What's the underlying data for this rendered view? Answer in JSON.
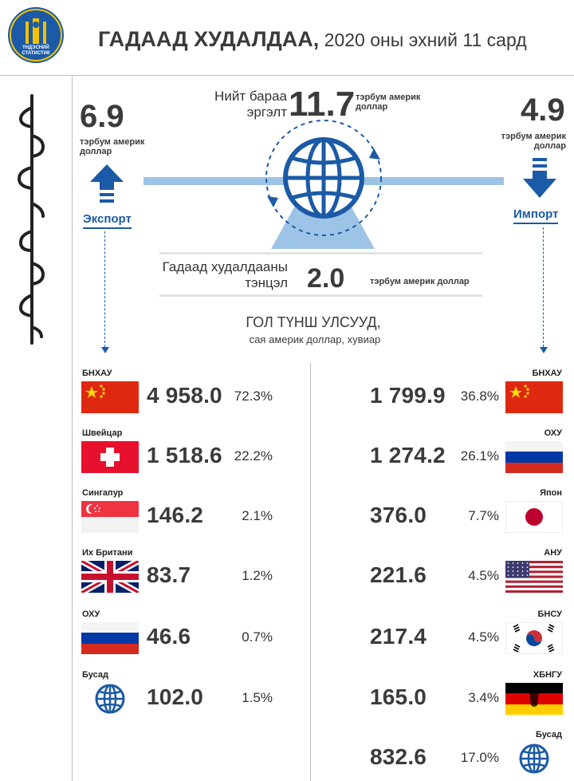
{
  "header": {
    "title_bold": "ГАДААД ХУДАЛДАА,",
    "title_rest": " 2020 оны эхний 11 сард",
    "logo_text": "ҮНДЭСНИЙ СТАТИСТИК"
  },
  "colors": {
    "accent": "#1b5aa6",
    "light_blue": "#9dc3e6",
    "text": "#3b3b3b"
  },
  "export": {
    "value": "6.9",
    "unit": "тэрбум америк доллар",
    "label": "Экспорт"
  },
  "import": {
    "value": "4.9",
    "unit": "тэрбум америк доллар",
    "label": "Импорт"
  },
  "turnover": {
    "label": "Нийт бараа эргэлт",
    "value": "11.7",
    "unit": "тэрбум америк доллар"
  },
  "balance": {
    "label": "Гадаад худалдааны тэнцэл",
    "value": "2.0",
    "unit": "тэрбум америк доллар"
  },
  "partners": {
    "title": "ГОЛ ТҮНШ УЛСУУД,",
    "subtitle": "сая америк доллар, хувиар"
  },
  "export_partners": [
    {
      "country": "БНХАУ",
      "value": "4 958.0",
      "pct": "72.3%",
      "flag": "china"
    },
    {
      "country": "Швейцар",
      "value": "1 518.6",
      "pct": "22.2%",
      "flag": "switzerland"
    },
    {
      "country": "Сингапур",
      "value": "146.2",
      "pct": "2.1%",
      "flag": "singapore"
    },
    {
      "country": "Их Британи",
      "value": "83.7",
      "pct": "1.2%",
      "flag": "uk"
    },
    {
      "country": "ОХУ",
      "value": "46.6",
      "pct": "0.7%",
      "flag": "russia"
    },
    {
      "country": "Бусад",
      "value": "102.0",
      "pct": "1.5%",
      "flag": "globe-icon"
    }
  ],
  "import_partners": [
    {
      "country": "БНХАУ",
      "value": "1 799.9",
      "pct": "36.8%",
      "flag": "china"
    },
    {
      "country": "ОХУ",
      "value": "1 274.2",
      "pct": "26.1%",
      "flag": "russia"
    },
    {
      "country": "Япон",
      "value": "376.0",
      "pct": "7.7%",
      "flag": "japan"
    },
    {
      "country": "АНУ",
      "value": "221.6",
      "pct": "4.5%",
      "flag": "usa"
    },
    {
      "country": "БНСУ",
      "value": "217.4",
      "pct": "4.5%",
      "flag": "korea"
    },
    {
      "country": "ХБНГУ",
      "value": "165.0",
      "pct": "3.4%",
      "flag": "germany"
    },
    {
      "country": "Бусад",
      "value": "832.6",
      "pct": "17.0%",
      "flag": "globe-icon"
    }
  ]
}
